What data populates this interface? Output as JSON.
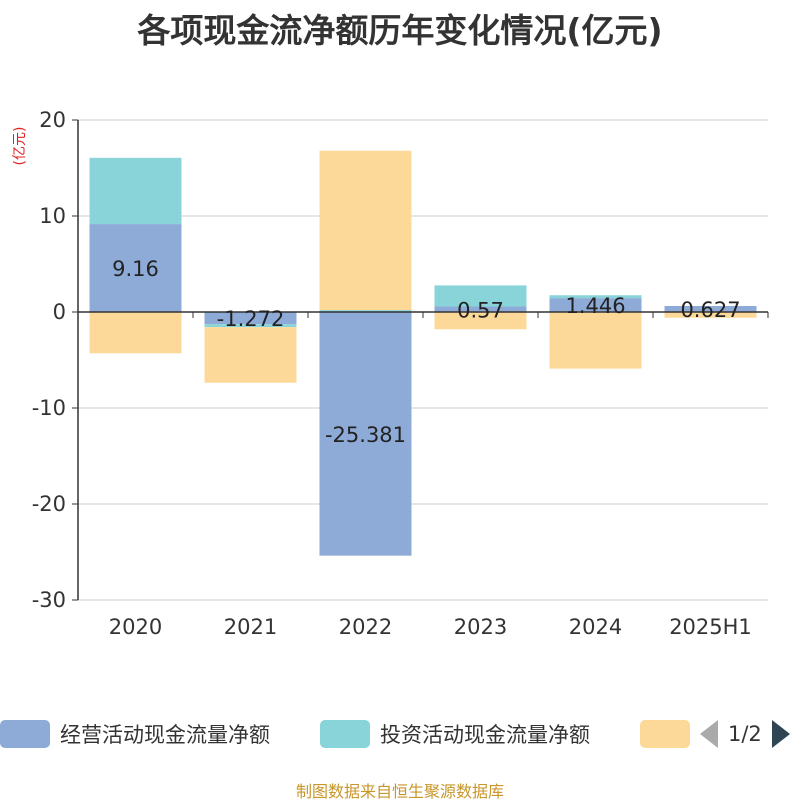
{
  "chart_data": {
    "type": "bar",
    "stacked": true,
    "title": "各项现金流净额历年变化情况(亿元)",
    "ylabel": "(亿元)",
    "categories": [
      "2020",
      "2021",
      "2022",
      "2023",
      "2024",
      "2025H1"
    ],
    "ylim": [
      -30,
      20
    ],
    "yticks": [
      20,
      10,
      0,
      -10,
      -20,
      -30
    ],
    "grid": true,
    "series": [
      {
        "name": "经营活动现金流量净额",
        "color": "#8eabd8",
        "values": [
          9.16,
          -1.272,
          -25.381,
          0.57,
          1.446,
          0.627
        ],
        "labels": [
          "9.16",
          "-1.272",
          "-25.381",
          "0.57",
          "1.446",
          "0.627"
        ]
      },
      {
        "name": "投资活动现金流量净额",
        "color": "#88d4d8",
        "values": [
          6.9,
          -0.3,
          0.2,
          2.2,
          0.3,
          0.0
        ]
      },
      {
        "color": "#fdd999",
        "values": [
          -4.3,
          -5.8,
          16.6,
          -1.8,
          -5.9,
          -0.6
        ]
      }
    ],
    "legend": {
      "position": "bottom",
      "page": "1/2"
    }
  },
  "source_note": "制图数据来自恒生聚源数据库"
}
